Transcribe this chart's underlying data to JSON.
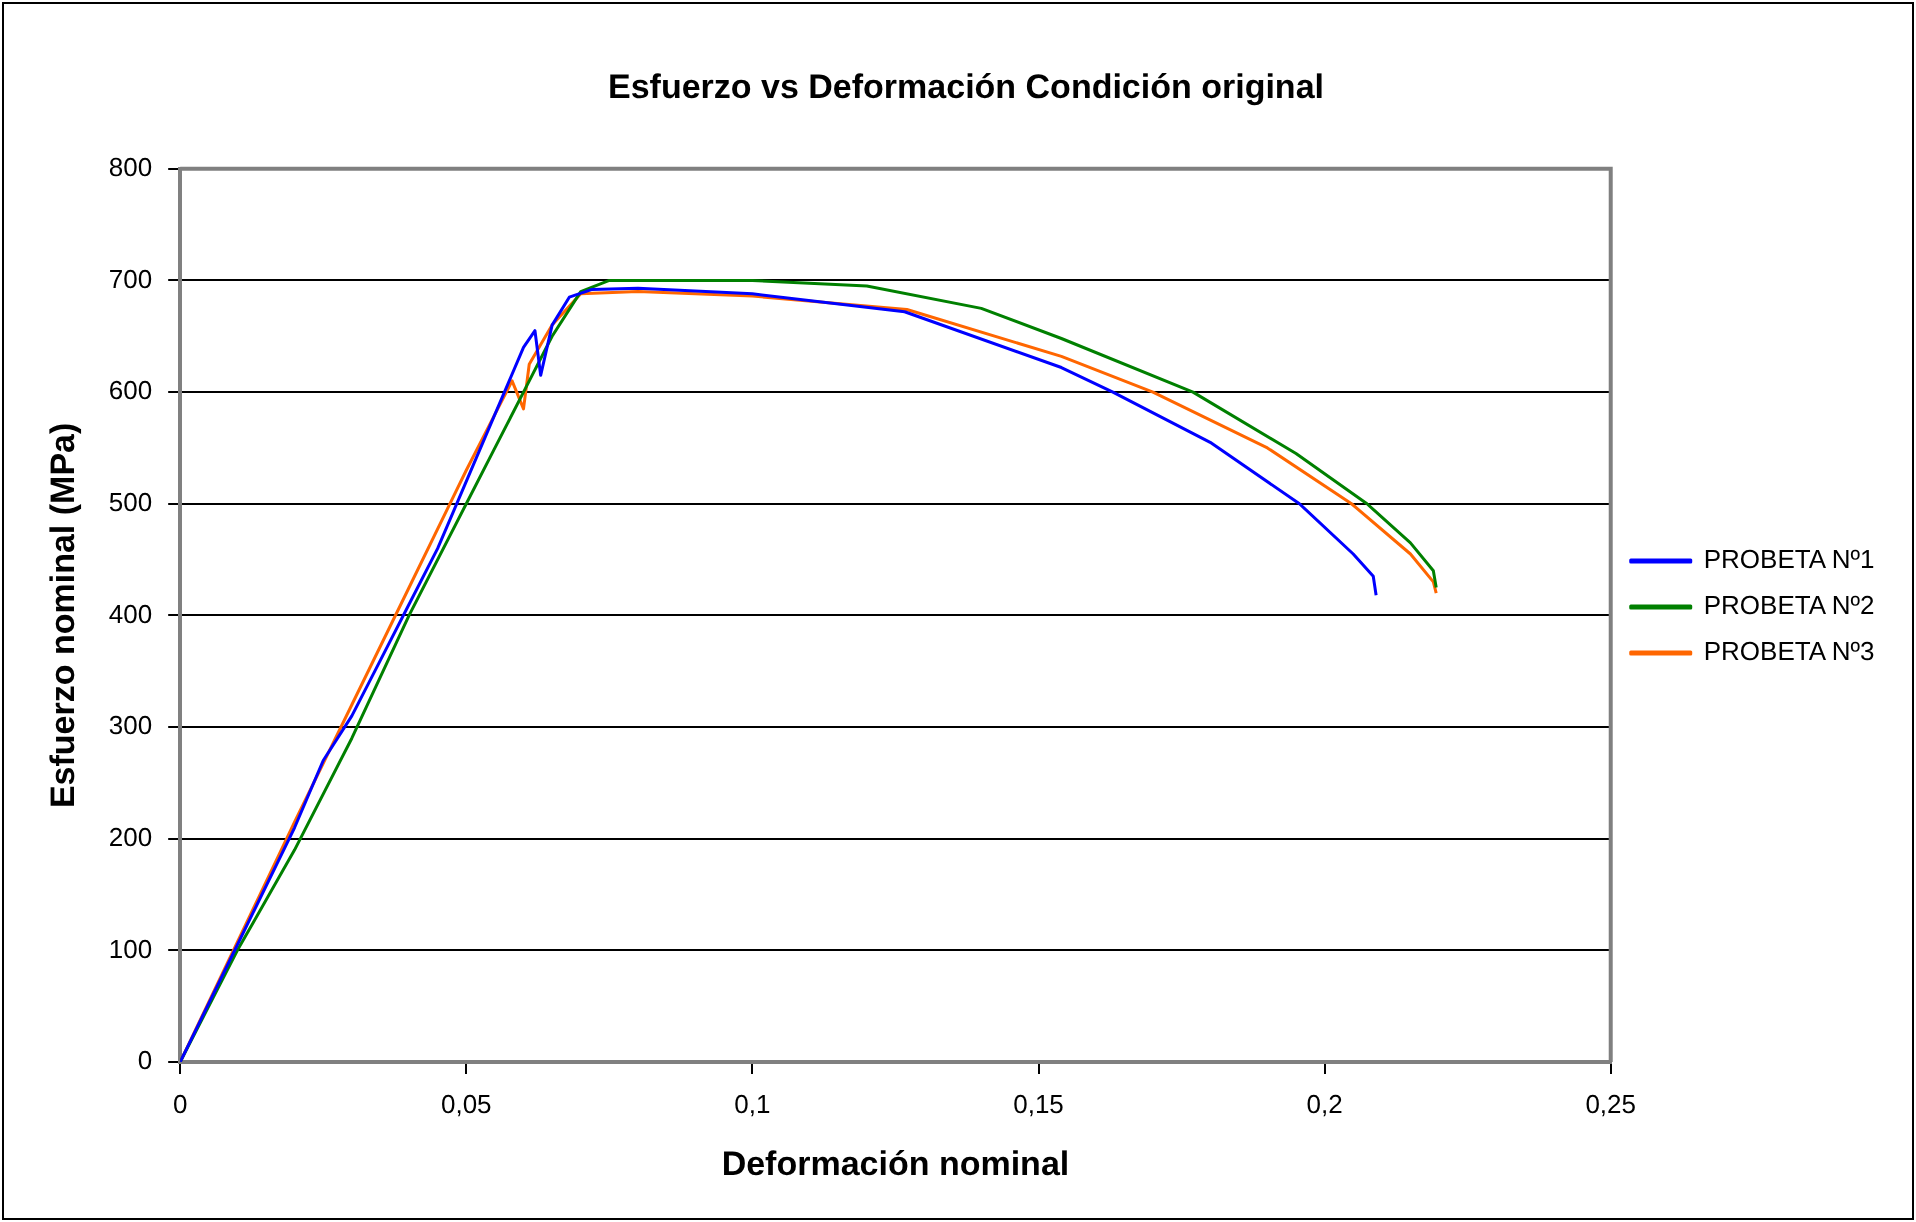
{
  "chart_data": {
    "type": "line",
    "title": "Esfuerzo vs Deformación Condición original",
    "xlabel": "Deformación nominal",
    "ylabel": "Esfuerzo nominal (MPa)",
    "xlim": [
      0,
      0.25
    ],
    "xticks": [
      {
        "value": 0,
        "label": "0"
      },
      {
        "value": 0.05,
        "label": "0,05"
      },
      {
        "value": 0.1,
        "label": "0,1"
      },
      {
        "value": 0.15,
        "label": "0,15"
      },
      {
        "value": 0.2,
        "label": "0,2"
      },
      {
        "value": 0.25,
        "label": "0,25"
      }
    ],
    "ylim": [
      0,
      800
    ],
    "yticks": [
      0,
      100,
      200,
      300,
      400,
      500,
      600,
      700,
      800
    ],
    "grid": "y",
    "legend": "right",
    "marker": "none",
    "line_style": "solid",
    "series": [
      {
        "name": "PROBETA Nº1",
        "color": "#0000ff",
        "x": [
          0,
          0.01,
          0.02,
          0.025,
          0.03,
          0.035,
          0.04,
          0.045,
          0.05,
          0.055,
          0.06,
          0.062,
          0.063,
          0.065,
          0.068,
          0.072,
          0.08,
          0.1,
          0.1266,
          0.154,
          0.163,
          0.18,
          0.1956,
          0.205,
          0.2085,
          0.209
        ],
        "values": [
          0,
          105,
          210,
          270,
          310,
          360,
          410,
          460,
          520,
          580,
          640,
          655,
          615,
          660,
          685,
          692,
          693,
          688,
          672,
          622,
          600,
          555,
          500,
          455,
          435,
          418
        ]
      },
      {
        "name": "PROBETA Nº2",
        "color": "#008000",
        "x": [
          0,
          0.01,
          0.02,
          0.03,
          0.04,
          0.05,
          0.055,
          0.06,
          0.065,
          0.07,
          0.075,
          0.1,
          0.12,
          0.14,
          0.154,
          0.177,
          0.195,
          0.2074,
          0.215,
          0.219,
          0.2195
        ],
        "values": [
          0,
          100,
          190,
          290,
          400,
          500,
          550,
          600,
          650,
          690,
          700,
          700,
          695,
          675,
          648,
          600,
          545,
          500,
          465,
          440,
          425
        ]
      },
      {
        "name": "PROBETA Nº3",
        "color": "#ff6600",
        "x": [
          0,
          0.02,
          0.03,
          0.04,
          0.05,
          0.055,
          0.058,
          0.06,
          0.061,
          0.065,
          0.07,
          0.08,
          0.1,
          0.127,
          0.154,
          0.17,
          0.19,
          0.2047,
          0.215,
          0.219,
          0.2195
        ],
        "values": [
          0,
          215,
          320,
          425,
          530,
          580,
          610,
          585,
          625,
          660,
          688,
          690,
          686,
          674,
          632,
          600,
          550,
          500,
          455,
          430,
          420
        ]
      }
    ]
  }
}
